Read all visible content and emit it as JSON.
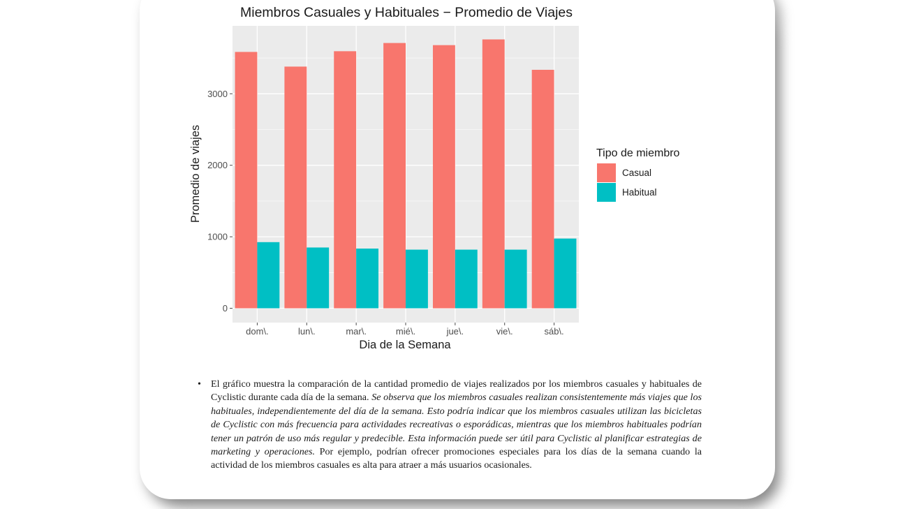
{
  "chart_data": {
    "type": "bar",
    "title": "Miembros Casuales y Habituales − Promedio de Viajes",
    "xlabel": "Dia de la Semana",
    "ylabel": "Promedio de viajes",
    "categories": [
      "dom\\.",
      "lun\\.",
      "mar\\.",
      "mié\\.",
      "jue\\.",
      "vie\\.",
      "sáb\\."
    ],
    "series": [
      {
        "name": "Casual",
        "color": "#F8766D",
        "values": [
          3585,
          3380,
          3595,
          3710,
          3680,
          3760,
          3335
        ]
      },
      {
        "name": "Habitual",
        "color": "#00BFC4",
        "values": [
          925,
          850,
          835,
          820,
          820,
          820,
          975
        ]
      }
    ],
    "yticks": [
      0,
      1000,
      2000,
      3000
    ],
    "ylim": [
      -200,
      3950
    ],
    "grid": true,
    "legend_title": "Tipo de miembro",
    "legend_position": "right",
    "panel_color": "#EBEBEB"
  },
  "text": {
    "part1": "El gráfico muestra la comparación de la cantidad promedio de viajes realizados por los miembros casuales y habituales de Cyclistic durante cada día de la semana.",
    "part2_italic": "Se observa que los miembros casuales realizan consistentemente más viajes que los habituales, independientemente del día de la semana. Esto podría indicar que los miembros casuales utilizan las bicicletas de Cyclistic con más frecuencia para actividades recreativas o esporádicas, mientras que los miembros habituales podrían tener un patrón de uso más regular y predecible. Esta información puede ser útil para Cyclistic al planificar estrategias de marketing y operaciones.",
    "part3": "Por ejemplo, podrían ofrecer promociones especiales para los días de la semana cuando la actividad de los miembros casuales es alta para atraer a más usuarios ocasionales."
  }
}
